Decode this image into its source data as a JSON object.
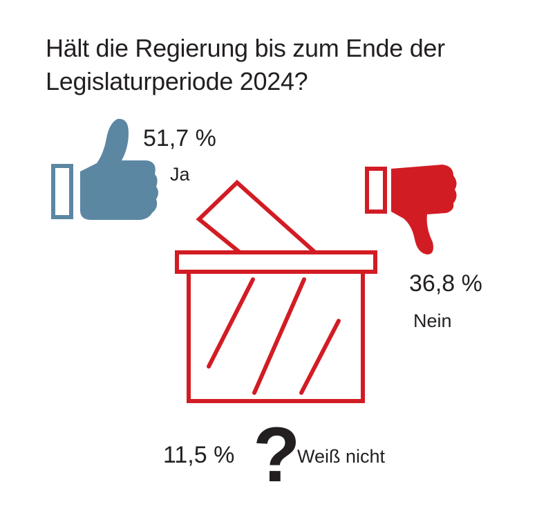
{
  "chart_data": {
    "type": "pie",
    "title": "Hält die Regierung bis zum Ende der Legislaturperiode 2024?",
    "slices": [
      {
        "label": "Ja",
        "value": 51.7,
        "value_label": "51,7 %",
        "color": "#5b87a3",
        "icon": "thumbs-up-icon"
      },
      {
        "label": "Nein",
        "value": 36.8,
        "value_label": "36,8 %",
        "color": "#d21c24",
        "icon": "thumbs-down-icon"
      },
      {
        "label": "Weiß nicht",
        "value": 11.5,
        "value_label": "11,5 %",
        "color": "#231f20",
        "icon": "question-mark-icon"
      }
    ],
    "central_icon": "ballot-box-icon",
    "ballot_box_color": "#d21c24"
  }
}
